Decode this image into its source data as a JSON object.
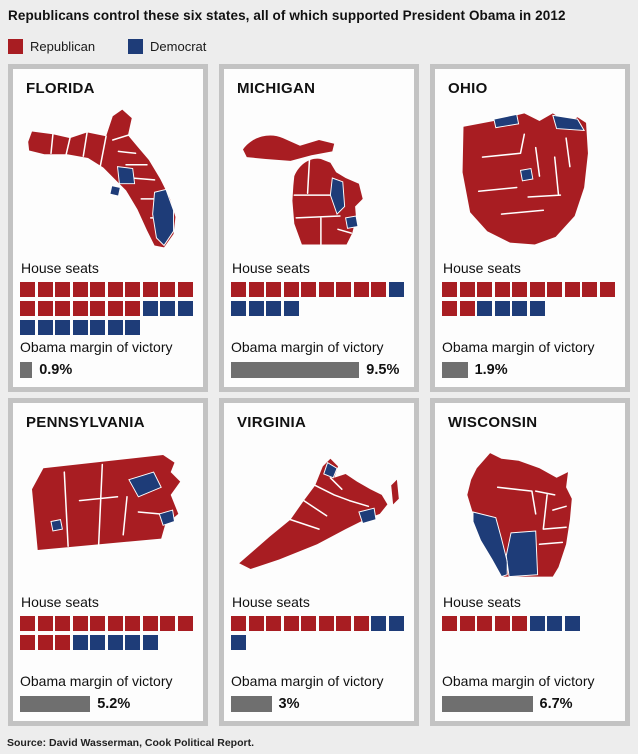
{
  "title": "Republicans control these six states, all of which supported President Obama in 2012",
  "legend": {
    "republican_label": "Republican",
    "democrat_label": "Democrat"
  },
  "labels": {
    "house_seats": "House seats",
    "obama_margin": "Obama margin of victory"
  },
  "colors": {
    "republican": "#a81d22",
    "democrat": "#1e3c78",
    "margin_bar": "#6f6f6f",
    "page_background": "#ededed",
    "panel_border": "#c3c3c3"
  },
  "source": "Source: David Wasserman, Cook Political Report.",
  "states": [
    {
      "name": "FLORIDA",
      "margin_pct": 0.9,
      "margin_label": "0.9%",
      "seat_rows": [
        [
          "R",
          "R",
          "R",
          "R",
          "R",
          "R",
          "R",
          "R",
          "R",
          "R"
        ],
        [
          "R",
          "R",
          "R",
          "R",
          "R",
          "R",
          "R",
          "D",
          "D",
          "D"
        ],
        [
          "D",
          "D",
          "D",
          "D",
          "D",
          "D",
          "D"
        ]
      ]
    },
    {
      "name": "MICHIGAN",
      "margin_pct": 9.5,
      "margin_label": "9.5%",
      "seat_rows": [
        [
          "R",
          "R",
          "R",
          "R",
          "R",
          "R",
          "R",
          "R",
          "R",
          "D"
        ],
        [
          "D",
          "D",
          "D",
          "D"
        ]
      ]
    },
    {
      "name": "OHIO",
      "margin_pct": 1.9,
      "margin_label": "1.9%",
      "seat_rows": [
        [
          "R",
          "R",
          "R",
          "R",
          "R",
          "R",
          "R",
          "R",
          "R",
          "R"
        ],
        [
          "R",
          "R",
          "D",
          "D",
          "D",
          "D"
        ]
      ]
    },
    {
      "name": "PENNSYLVANIA",
      "margin_pct": 5.2,
      "margin_label": "5.2%",
      "seat_rows": [
        [
          "R",
          "R",
          "R",
          "R",
          "R",
          "R",
          "R",
          "R",
          "R",
          "R"
        ],
        [
          "R",
          "R",
          "R",
          "D",
          "D",
          "D",
          "D",
          "D"
        ]
      ]
    },
    {
      "name": "VIRGINIA",
      "margin_pct": 3,
      "margin_label": "3%",
      "seat_rows": [
        [
          "R",
          "R",
          "R",
          "R",
          "R",
          "R",
          "R",
          "R",
          "D",
          "D"
        ],
        [
          "D"
        ]
      ]
    },
    {
      "name": "WISCONSIN",
      "margin_pct": 6.7,
      "margin_label": "6.7%",
      "seat_rows": [
        [
          "R",
          "R",
          "R",
          "R",
          "R",
          "D",
          "D",
          "D"
        ]
      ]
    }
  ],
  "chart_data": {
    "type": "table",
    "title": "Republicans control these six states, all of which supported President Obama in 2012",
    "columns": [
      "State",
      "Republican House seats",
      "Democrat House seats",
      "Obama margin of victory (%)"
    ],
    "rows": [
      [
        "Florida",
        17,
        10,
        0.9
      ],
      [
        "Michigan",
        9,
        5,
        9.5
      ],
      [
        "Ohio",
        12,
        4,
        1.9
      ],
      [
        "Pennsylvania",
        13,
        5,
        5.2
      ],
      [
        "Virginia",
        8,
        3,
        3.0
      ],
      [
        "Wisconsin",
        5,
        3,
        6.7
      ]
    ]
  }
}
